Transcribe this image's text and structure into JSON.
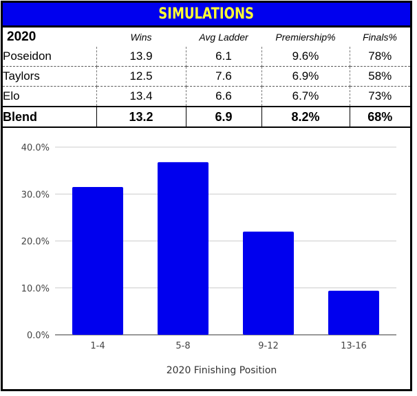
{
  "title": "SIMULATIONS",
  "table": {
    "year": "2020",
    "columns": [
      "Wins",
      "Avg Ladder",
      "Premiership%",
      "Finals%"
    ],
    "rows": [
      {
        "name": "Poseidon",
        "values": [
          "13.9",
          "6.1",
          "9.6%",
          "78%"
        ]
      },
      {
        "name": "Taylors",
        "values": [
          "12.5",
          "7.6",
          "6.9%",
          "58%"
        ]
      },
      {
        "name": "Elo",
        "values": [
          "13.4",
          "6.6",
          "6.7%",
          "73%"
        ]
      }
    ],
    "blend": {
      "name": "Blend",
      "values": [
        "13.2",
        "6.9",
        "8.2%",
        "68%"
      ]
    }
  },
  "chart_data": {
    "type": "bar",
    "categories": [
      "1-4",
      "5-8",
      "9-12",
      "13-16"
    ],
    "values": [
      31.5,
      36.8,
      22.0,
      9.4
    ],
    "xlabel": "2020 Finishing Position",
    "ylabel": "",
    "ylim": [
      0,
      40
    ],
    "yticks": [
      "0.0%",
      "10.0%",
      "20.0%",
      "30.0%",
      "40.0%"
    ],
    "bar_color": "#0000ee",
    "grid": true
  },
  "colors": {
    "title_bg": "#0000ee",
    "title_text": "#ffff33"
  }
}
